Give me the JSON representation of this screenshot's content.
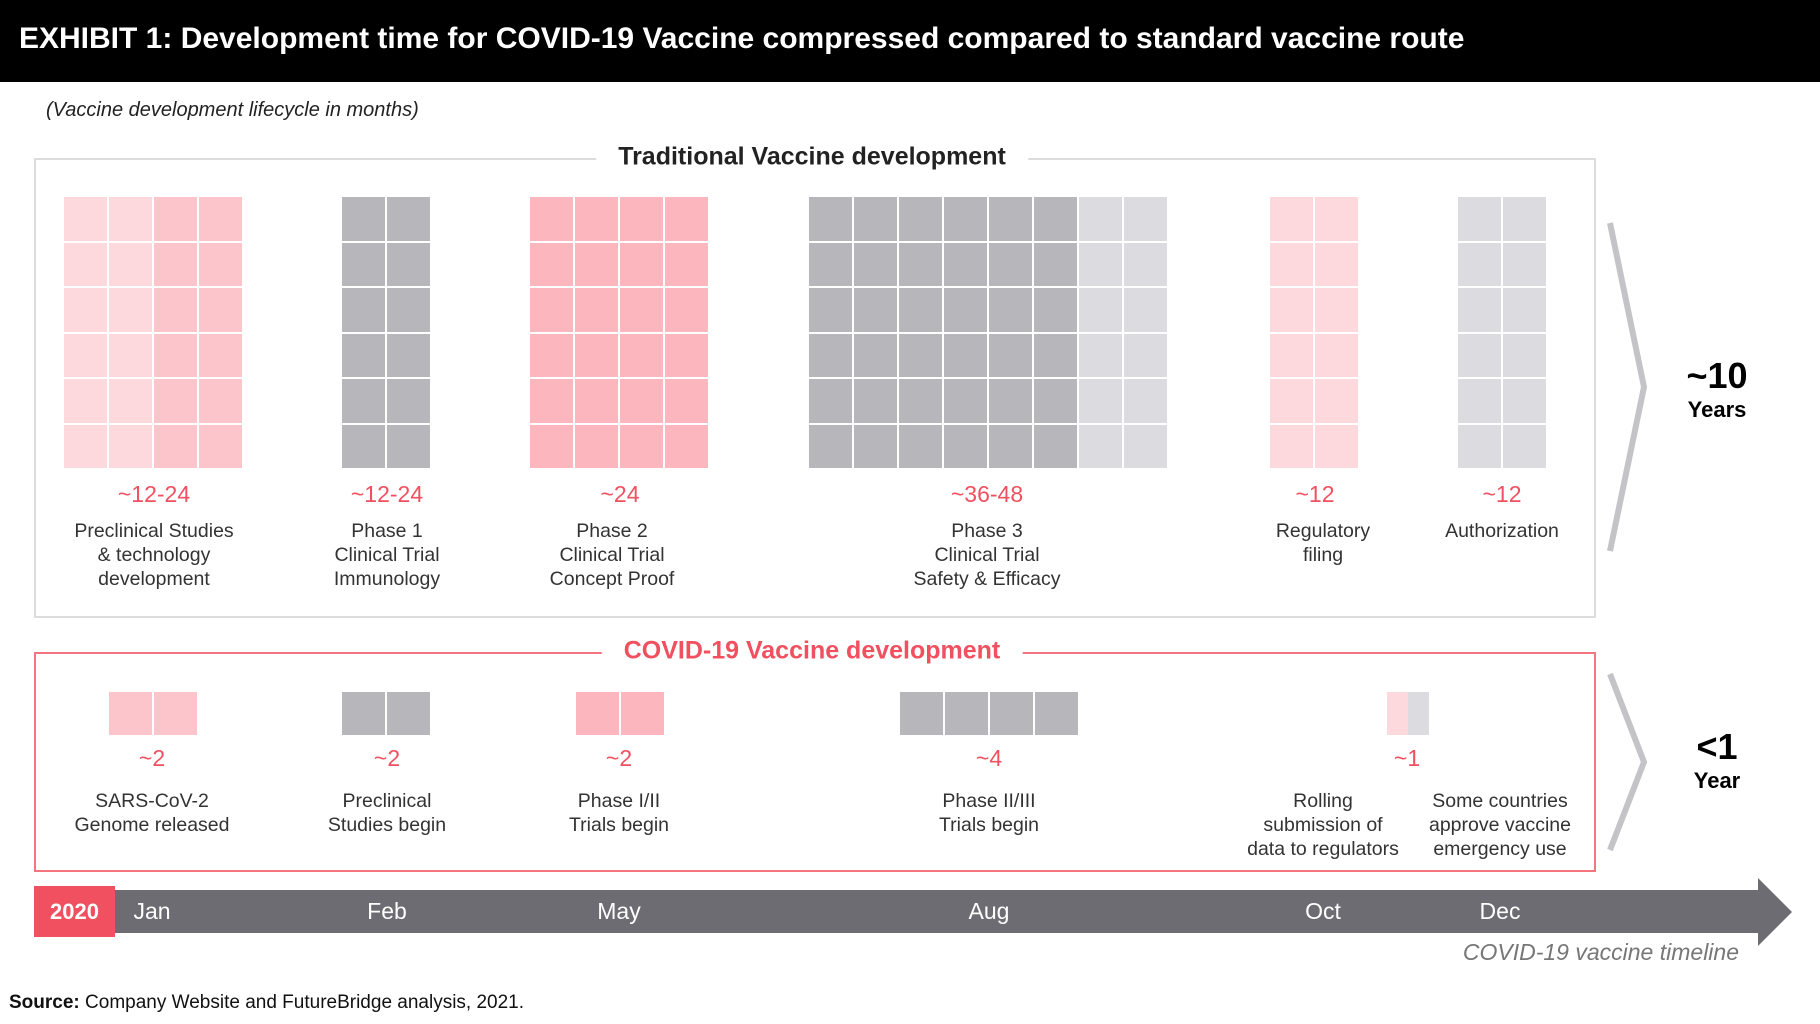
{
  "header": {
    "title": "EXHIBIT 1: Development time for COVID-19 Vaccine compressed compared to standard vaccine route"
  },
  "subtitle": "(Vaccine development lifecycle in months)",
  "traditional": {
    "title": "Traditional Vaccine development",
    "stages": [
      {
        "value": "~12-24",
        "label": [
          "Preclinical Studies",
          "& technology",
          "development"
        ],
        "rows": 6,
        "colors": [
          "#fdd9de",
          "#fdd9de",
          "#fcc5cb",
          "#fcc5cb"
        ]
      },
      {
        "value": "~12-24",
        "label": [
          "Phase 1",
          "Clinical Trial",
          "Immunology"
        ],
        "rows": 6,
        "colors": [
          "#b7b6bb",
          "#b7b6bb"
        ]
      },
      {
        "value": "~24",
        "label": [
          "Phase 2",
          "Clinical Trial",
          "Concept Proof"
        ],
        "rows": 6,
        "colors": [
          "#fbb7bd",
          "#fbb7bd",
          "#fbb7bd",
          "#fbb7bd"
        ]
      },
      {
        "value": "~36-48",
        "label": [
          "Phase 3",
          "Clinical Trial",
          "Safety & Efficacy"
        ],
        "rows": 6,
        "colors": [
          "#b7b6bb",
          "#b7b6bb",
          "#b7b6bb",
          "#b7b6bb",
          "#b7b6bb",
          "#b7b6bb",
          "#dcdbe0",
          "#dcdbe0"
        ]
      },
      {
        "value": "~12",
        "label": [
          "Regulatory",
          "filing"
        ],
        "rows": 6,
        "colors": [
          "#fdd9de",
          "#fdd9de"
        ]
      },
      {
        "value": "~12",
        "label": [
          "Authorization"
        ],
        "rows": 6,
        "colors": [
          "#dcdbe0",
          "#dcdbe0"
        ]
      }
    ],
    "total": {
      "value": "~10",
      "unit": "Years"
    }
  },
  "covid": {
    "title": "COVID-19 Vaccine development",
    "stages": [
      {
        "value": "~2",
        "label": [
          "SARS-CoV-2",
          "Genome released"
        ],
        "rows": 1,
        "colors": [
          "#fcc5cb",
          "#fcc5cb"
        ]
      },
      {
        "value": "~2",
        "label": [
          "Preclinical",
          "Studies begin"
        ],
        "rows": 1,
        "colors": [
          "#b7b6bb",
          "#b7b6bb"
        ]
      },
      {
        "value": "~2",
        "label": [
          "Phase I/II",
          "Trials begin"
        ],
        "rows": 1,
        "colors": [
          "#fbb7bd",
          "#fbb7bd"
        ]
      },
      {
        "value": "~4",
        "label": [
          "Phase II/III",
          "Trials begin"
        ],
        "rows": 1,
        "colors": [
          "#b7b6bb",
          "#b7b6bb",
          "#b7b6bb",
          "#b7b6bb"
        ]
      },
      {
        "value": "~1",
        "label": [
          "Rolling",
          "submission of",
          "data to regulators"
        ],
        "rows": 1,
        "colors": [
          "#fdd9de",
          "#dcdbe0"
        ]
      },
      {
        "value": "",
        "label": [
          "Some countries",
          "approve vaccine",
          "emergency use"
        ],
        "rows": 0,
        "colors": []
      }
    ],
    "total": {
      "value": "<1",
      "unit": "Year"
    }
  },
  "timeline": {
    "year": "2020",
    "months": [
      "Jan",
      "Feb",
      "May",
      "Aug",
      "Oct",
      "Dec"
    ],
    "caption": "COVID-19 vaccine timeline"
  },
  "source": {
    "bold": "Source:",
    "text": " Company Website and FutureBridge analysis, 2021."
  },
  "colors": {
    "accent": "#f0505f",
    "bar": "#6d6c72"
  }
}
